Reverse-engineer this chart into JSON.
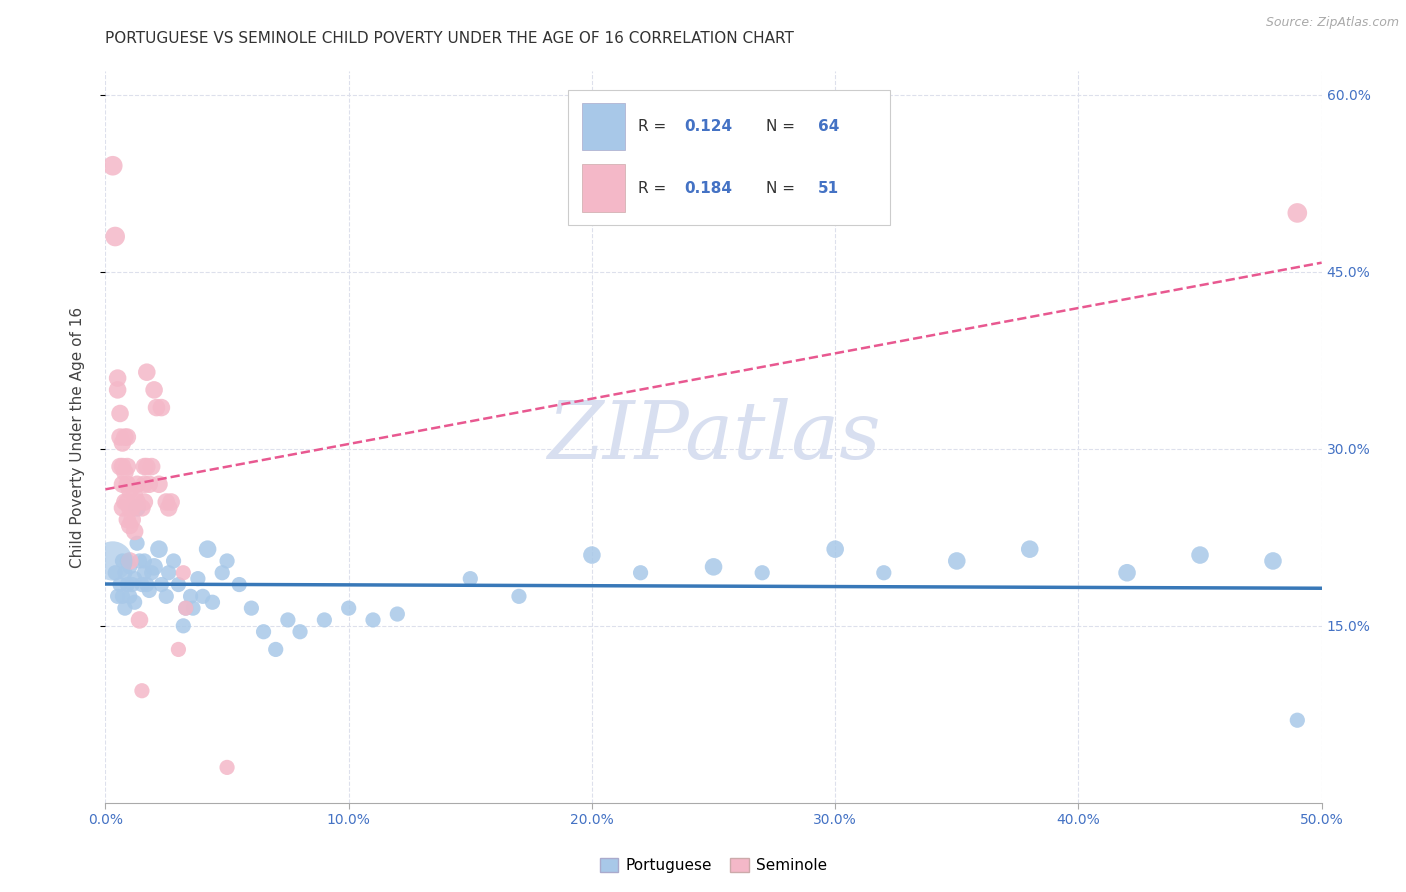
{
  "title": "PORTUGUESE VS SEMINOLE CHILD POVERTY UNDER THE AGE OF 16 CORRELATION CHART",
  "source": "Source: ZipAtlas.com",
  "ylabel": "Child Poverty Under the Age of 16",
  "xlabel": "",
  "xlim": [
    0.0,
    0.5
  ],
  "ylim": [
    0.0,
    0.62
  ],
  "xtick_vals": [
    0.0,
    0.1,
    0.2,
    0.3,
    0.4,
    0.5
  ],
  "xtick_labels": [
    "0.0%",
    "10.0%",
    "20.0%",
    "30.0%",
    "40.0%",
    "50.0%"
  ],
  "right_ytick_positions": [
    0.15,
    0.3,
    0.45,
    0.6
  ],
  "right_ytick_labels": [
    "15.0%",
    "30.0%",
    "45.0%",
    "60.0%"
  ],
  "blue_color": "#a8c8e8",
  "pink_color": "#f4b8c8",
  "trend_blue": "#3878b8",
  "trend_pink": "#e85890",
  "watermark": "ZIPatlas",
  "watermark_color": "#d8dff0",
  "R_blue": 0.124,
  "N_blue": 64,
  "R_pink": 0.184,
  "N_pink": 51,
  "background_color": "#ffffff",
  "grid_color": "#dde0ec",
  "blue_points": [
    [
      0.004,
      0.195
    ],
    [
      0.005,
      0.175
    ],
    [
      0.006,
      0.185
    ],
    [
      0.007,
      0.205
    ],
    [
      0.007,
      0.175
    ],
    [
      0.008,
      0.195
    ],
    [
      0.008,
      0.165
    ],
    [
      0.009,
      0.205
    ],
    [
      0.009,
      0.185
    ],
    [
      0.01,
      0.175
    ],
    [
      0.01,
      0.2
    ],
    [
      0.011,
      0.185
    ],
    [
      0.012,
      0.19
    ],
    [
      0.012,
      0.17
    ],
    [
      0.013,
      0.25
    ],
    [
      0.013,
      0.22
    ],
    [
      0.014,
      0.205
    ],
    [
      0.015,
      0.185
    ],
    [
      0.016,
      0.195
    ],
    [
      0.016,
      0.205
    ],
    [
      0.017,
      0.185
    ],
    [
      0.018,
      0.18
    ],
    [
      0.019,
      0.195
    ],
    [
      0.02,
      0.2
    ],
    [
      0.022,
      0.215
    ],
    [
      0.023,
      0.185
    ],
    [
      0.025,
      0.175
    ],
    [
      0.026,
      0.195
    ],
    [
      0.028,
      0.205
    ],
    [
      0.03,
      0.185
    ],
    [
      0.032,
      0.15
    ],
    [
      0.033,
      0.165
    ],
    [
      0.035,
      0.175
    ],
    [
      0.036,
      0.165
    ],
    [
      0.038,
      0.19
    ],
    [
      0.04,
      0.175
    ],
    [
      0.042,
      0.215
    ],
    [
      0.044,
      0.17
    ],
    [
      0.048,
      0.195
    ],
    [
      0.05,
      0.205
    ],
    [
      0.055,
      0.185
    ],
    [
      0.06,
      0.165
    ],
    [
      0.065,
      0.145
    ],
    [
      0.07,
      0.13
    ],
    [
      0.075,
      0.155
    ],
    [
      0.08,
      0.145
    ],
    [
      0.09,
      0.155
    ],
    [
      0.1,
      0.165
    ],
    [
      0.11,
      0.155
    ],
    [
      0.12,
      0.16
    ],
    [
      0.15,
      0.19
    ],
    [
      0.17,
      0.175
    ],
    [
      0.2,
      0.21
    ],
    [
      0.22,
      0.195
    ],
    [
      0.25,
      0.2
    ],
    [
      0.27,
      0.195
    ],
    [
      0.3,
      0.215
    ],
    [
      0.32,
      0.195
    ],
    [
      0.35,
      0.205
    ],
    [
      0.38,
      0.215
    ],
    [
      0.42,
      0.195
    ],
    [
      0.45,
      0.21
    ],
    [
      0.48,
      0.205
    ],
    [
      0.49,
      0.07
    ]
  ],
  "pink_points": [
    [
      0.003,
      0.54
    ],
    [
      0.004,
      0.48
    ],
    [
      0.005,
      0.36
    ],
    [
      0.005,
      0.35
    ],
    [
      0.006,
      0.33
    ],
    [
      0.006,
      0.31
    ],
    [
      0.006,
      0.285
    ],
    [
      0.007,
      0.305
    ],
    [
      0.007,
      0.285
    ],
    [
      0.007,
      0.27
    ],
    [
      0.007,
      0.25
    ],
    [
      0.008,
      0.31
    ],
    [
      0.008,
      0.28
    ],
    [
      0.008,
      0.255
    ],
    [
      0.009,
      0.31
    ],
    [
      0.009,
      0.285
    ],
    [
      0.009,
      0.27
    ],
    [
      0.009,
      0.255
    ],
    [
      0.009,
      0.24
    ],
    [
      0.01,
      0.265
    ],
    [
      0.01,
      0.25
    ],
    [
      0.01,
      0.235
    ],
    [
      0.01,
      0.205
    ],
    [
      0.011,
      0.25
    ],
    [
      0.011,
      0.24
    ],
    [
      0.012,
      0.26
    ],
    [
      0.012,
      0.23
    ],
    [
      0.013,
      0.27
    ],
    [
      0.013,
      0.255
    ],
    [
      0.014,
      0.155
    ],
    [
      0.015,
      0.095
    ],
    [
      0.015,
      0.25
    ],
    [
      0.016,
      0.285
    ],
    [
      0.016,
      0.27
    ],
    [
      0.016,
      0.255
    ],
    [
      0.017,
      0.365
    ],
    [
      0.017,
      0.285
    ],
    [
      0.018,
      0.27
    ],
    [
      0.019,
      0.285
    ],
    [
      0.02,
      0.35
    ],
    [
      0.021,
      0.335
    ],
    [
      0.022,
      0.27
    ],
    [
      0.023,
      0.335
    ],
    [
      0.025,
      0.255
    ],
    [
      0.026,
      0.25
    ],
    [
      0.027,
      0.255
    ],
    [
      0.03,
      0.13
    ],
    [
      0.032,
      0.195
    ],
    [
      0.033,
      0.165
    ],
    [
      0.05,
      0.03
    ],
    [
      0.49,
      0.5
    ]
  ],
  "blue_sizes_raw": [
    30,
    30,
    30,
    30,
    30,
    30,
    30,
    30,
    30,
    30,
    30,
    30,
    30,
    30,
    40,
    30,
    30,
    30,
    30,
    30,
    30,
    30,
    30,
    40,
    40,
    30,
    30,
    30,
    30,
    30,
    30,
    30,
    30,
    30,
    30,
    30,
    40,
    30,
    30,
    30,
    30,
    30,
    30,
    30,
    30,
    30,
    30,
    30,
    30,
    30,
    30,
    30,
    40,
    30,
    40,
    30,
    40,
    30,
    40,
    40,
    40,
    40,
    40,
    30
  ],
  "pink_sizes_raw": [
    50,
    50,
    40,
    40,
    40,
    40,
    40,
    40,
    40,
    40,
    40,
    40,
    40,
    40,
    40,
    40,
    40,
    40,
    40,
    40,
    40,
    40,
    40,
    40,
    40,
    40,
    40,
    40,
    40,
    40,
    30,
    40,
    40,
    40,
    40,
    40,
    40,
    40,
    40,
    40,
    40,
    40,
    40,
    40,
    40,
    40,
    30,
    30,
    30,
    30,
    50
  ]
}
